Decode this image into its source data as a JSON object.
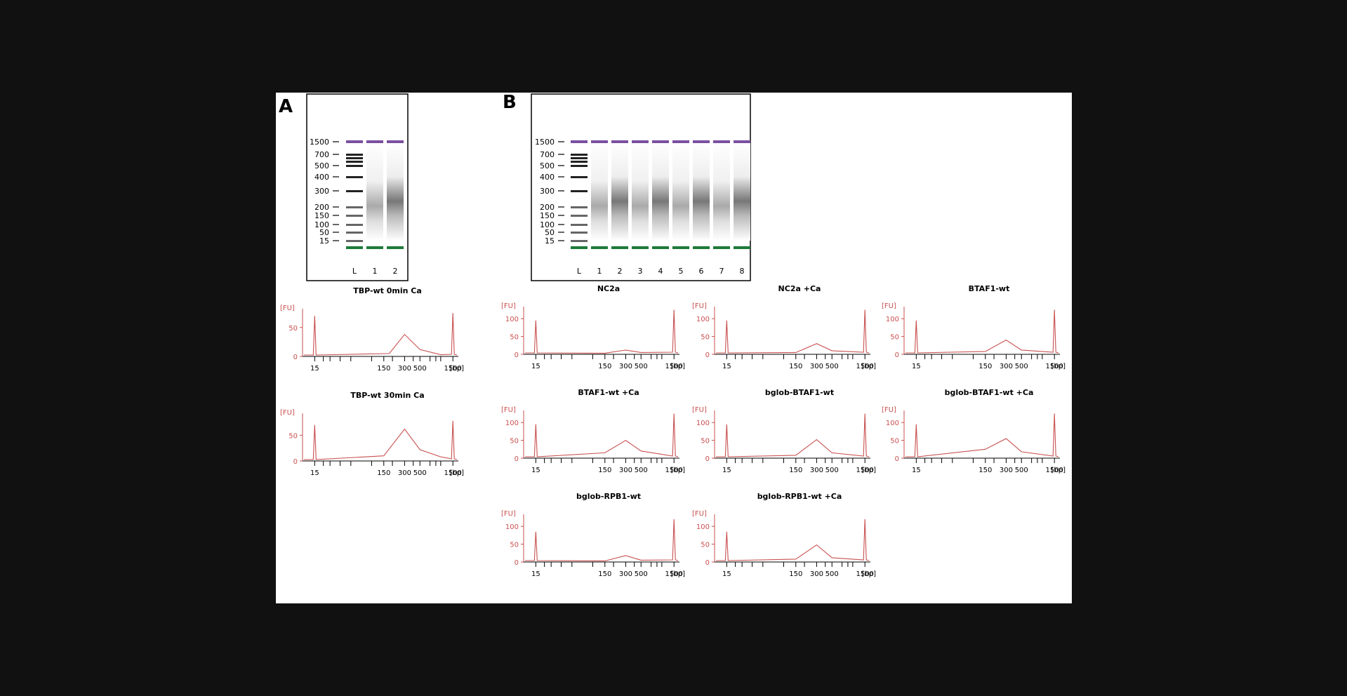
{
  "panels": {
    "A": {
      "label": "A",
      "lanes": [
        "L",
        "1",
        "2"
      ],
      "ladder": [
        "1500",
        "700",
        "500",
        "400",
        "300",
        "200",
        "150",
        "100",
        "50",
        "15"
      ]
    },
    "B": {
      "label": "B",
      "lanes": [
        "L",
        "1",
        "2",
        "3",
        "4",
        "5",
        "6",
        "7",
        "8"
      ],
      "ladder": [
        "1500",
        "700",
        "500",
        "400",
        "300",
        "200",
        "150",
        "100",
        "50",
        "15"
      ]
    }
  },
  "colors": {
    "trace": "#c8504f",
    "upper_marker": "#7a4fa0",
    "lower_marker": "#1e7a3a"
  },
  "chart_data": [
    {
      "type": "line",
      "title": "TBP-wt 0min Ca",
      "xlabel": "[bp]",
      "ylabel": "[FU]",
      "yticks": [
        "0",
        "50"
      ],
      "xticks": [
        "15",
        "150",
        "300",
        "500",
        "1500"
      ],
      "ylim": [
        0,
        80
      ],
      "series": [
        {
          "values": [
            [
              15,
              70
            ],
            [
              180,
              5
            ],
            [
              300,
              38
            ],
            [
              500,
              12
            ],
            [
              1000,
              3
            ],
            [
              1500,
              75
            ]
          ]
        }
      ]
    },
    {
      "type": "line",
      "title": "TBP-wt 30min Ca",
      "xlabel": "[bp]",
      "ylabel": "[FU]",
      "yticks": [
        "0",
        "50"
      ],
      "xticks": [
        "15",
        "150",
        "300",
        "500",
        "1500"
      ],
      "ylim": [
        0,
        90
      ],
      "series": [
        {
          "values": [
            [
              15,
              70
            ],
            [
              150,
              10
            ],
            [
              300,
              62
            ],
            [
              500,
              22
            ],
            [
              1000,
              8
            ],
            [
              1500,
              78
            ]
          ]
        }
      ]
    },
    {
      "type": "line",
      "title": "NC2a",
      "xlabel": "[bp]",
      "ylabel": "[FU]",
      "yticks": [
        "0",
        "50",
        "100"
      ],
      "xticks": [
        "15",
        "150",
        "300",
        "500",
        "1500"
      ],
      "ylim": [
        0,
        130
      ],
      "series": [
        {
          "values": [
            [
              15,
              95
            ],
            [
              150,
              3
            ],
            [
              300,
              12
            ],
            [
              500,
              5
            ],
            [
              1500,
              125
            ]
          ]
        }
      ]
    },
    {
      "type": "line",
      "title": "NC2a +Ca",
      "xlabel": "[bp]",
      "ylabel": "[FU]",
      "yticks": [
        "0",
        "50",
        "100"
      ],
      "xticks": [
        "15",
        "150",
        "300",
        "500",
        "1500"
      ],
      "ylim": [
        0,
        130
      ],
      "series": [
        {
          "values": [
            [
              15,
              95
            ],
            [
              150,
              5
            ],
            [
              300,
              30
            ],
            [
              500,
              10
            ],
            [
              1500,
              125
            ]
          ]
        }
      ]
    },
    {
      "type": "line",
      "title": "BTAF1-wt",
      "xlabel": "[bp]",
      "ylabel": "[FU]",
      "yticks": [
        "0",
        "50",
        "100"
      ],
      "xticks": [
        "15",
        "150",
        "300",
        "500",
        "1500"
      ],
      "ylim": [
        0,
        130
      ],
      "series": [
        {
          "values": [
            [
              15,
              95
            ],
            [
              150,
              8
            ],
            [
              300,
              40
            ],
            [
              500,
              12
            ],
            [
              1500,
              125
            ]
          ]
        }
      ]
    },
    {
      "type": "line",
      "title": "BTAF1-wt +Ca",
      "xlabel": "[bp]",
      "ylabel": "[FU]",
      "yticks": [
        "0",
        "50",
        "100"
      ],
      "xticks": [
        "15",
        "150",
        "300",
        "500",
        "1500"
      ],
      "ylim": [
        0,
        130
      ],
      "series": [
        {
          "values": [
            [
              15,
              95
            ],
            [
              150,
              15
            ],
            [
              300,
              50
            ],
            [
              500,
              20
            ],
            [
              1500,
              125
            ]
          ]
        }
      ]
    },
    {
      "type": "line",
      "title": "bglob-BTAF1-wt",
      "xlabel": "[bp]",
      "ylabel": "[FU]",
      "yticks": [
        "0",
        "50",
        "100"
      ],
      "xticks": [
        "15",
        "150",
        "300",
        "500",
        "1500"
      ],
      "ylim": [
        0,
        130
      ],
      "series": [
        {
          "values": [
            [
              15,
              95
            ],
            [
              150,
              8
            ],
            [
              300,
              52
            ],
            [
              500,
              15
            ],
            [
              1500,
              125
            ]
          ]
        }
      ]
    },
    {
      "type": "line",
      "title": "bglob-BTAF1-wt +Ca",
      "xlabel": "[bp]",
      "ylabel": "[FU]",
      "yticks": [
        "0",
        "50",
        "100"
      ],
      "xticks": [
        "15",
        "150",
        "300",
        "500",
        "1500"
      ],
      "ylim": [
        0,
        130
      ],
      "series": [
        {
          "values": [
            [
              15,
              95
            ],
            [
              150,
              25
            ],
            [
              300,
              55
            ],
            [
              500,
              18
            ],
            [
              1500,
              125
            ]
          ]
        }
      ]
    },
    {
      "type": "line",
      "title": "bglob-RPB1-wt",
      "xlabel": "[bp]",
      "ylabel": "[FU]",
      "yticks": [
        "0",
        "50",
        "100"
      ],
      "xticks": [
        "15",
        "150",
        "300",
        "500",
        "1500"
      ],
      "ylim": [
        0,
        130
      ],
      "series": [
        {
          "values": [
            [
              15,
              85
            ],
            [
              150,
              3
            ],
            [
              300,
              18
            ],
            [
              500,
              5
            ],
            [
              1500,
              120
            ]
          ]
        }
      ]
    },
    {
      "type": "line",
      "title": "bglob-RPB1-wt +Ca",
      "xlabel": "[bp]",
      "ylabel": "[FU]",
      "yticks": [
        "0",
        "50",
        "100"
      ],
      "xticks": [
        "15",
        "150",
        "300",
        "500",
        "1500"
      ],
      "ylim": [
        0,
        130
      ],
      "series": [
        {
          "values": [
            [
              15,
              85
            ],
            [
              150,
              8
            ],
            [
              300,
              48
            ],
            [
              500,
              12
            ],
            [
              1500,
              120
            ]
          ]
        }
      ]
    }
  ]
}
